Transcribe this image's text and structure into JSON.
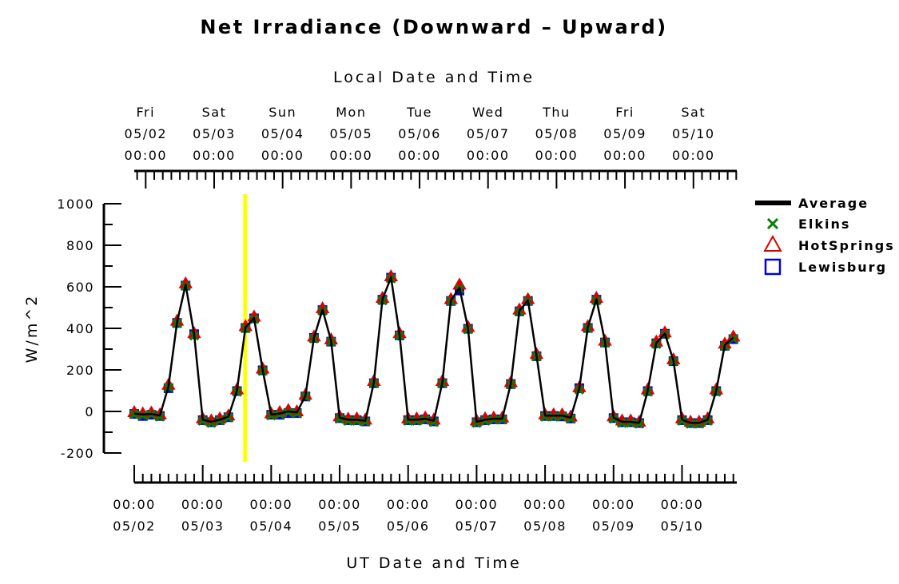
{
  "chart_data": {
    "type": "line",
    "title": "Net Irradiance (Downward – Upward)",
    "top_axis_title": "Local Date and Time",
    "xlabel": "UT Date and Time",
    "ylabel": "W/m^2",
    "ylim": [
      -200,
      1000
    ],
    "yticks": [
      -200,
      0,
      200,
      400,
      600,
      800,
      1000
    ],
    "xlim_days": [
      0,
      8.8
    ],
    "top_ticks": [
      {
        "day": "Fri",
        "date": "05/02",
        "time": "00:00"
      },
      {
        "day": "Sat",
        "date": "05/03",
        "time": "00:00"
      },
      {
        "day": "Sun",
        "date": "05/04",
        "time": "00:00"
      },
      {
        "day": "Mon",
        "date": "05/05",
        "time": "00:00"
      },
      {
        "day": "Tue",
        "date": "05/06",
        "time": "00:00"
      },
      {
        "day": "Wed",
        "date": "05/07",
        "time": "00:00"
      },
      {
        "day": "Thu",
        "date": "05/08",
        "time": "00:00"
      },
      {
        "day": "Fri",
        "date": "05/09",
        "time": "00:00"
      },
      {
        "day": "Sat",
        "date": "05/10",
        "time": "00:00"
      }
    ],
    "top_tick_offset_days": 0.167,
    "bottom_ticks": [
      {
        "time": "00:00",
        "date": "05/02"
      },
      {
        "time": "00:00",
        "date": "05/03"
      },
      {
        "time": "00:00",
        "date": "05/04"
      },
      {
        "time": "00:00",
        "date": "05/05"
      },
      {
        "time": "00:00",
        "date": "05/06"
      },
      {
        "time": "00:00",
        "date": "05/07"
      },
      {
        "time": "00:00",
        "date": "05/08"
      },
      {
        "time": "00:00",
        "date": "05/09"
      },
      {
        "time": "00:00",
        "date": "05/10"
      }
    ],
    "current_time_day": 1.62,
    "x_days": [
      0,
      0.125,
      0.25,
      0.375,
      0.5,
      0.625,
      0.75,
      0.875,
      1,
      1.125,
      1.25,
      1.375,
      1.5,
      1.625,
      1.75,
      1.875,
      2,
      2.125,
      2.25,
      2.375,
      2.5,
      2.625,
      2.75,
      2.875,
      3,
      3.125,
      3.25,
      3.375,
      3.5,
      3.625,
      3.75,
      3.875,
      4,
      4.125,
      4.25,
      4.375,
      4.5,
      4.625,
      4.75,
      4.875,
      5,
      5.125,
      5.25,
      5.375,
      5.5,
      5.625,
      5.75,
      5.875,
      6,
      6.125,
      6.25,
      6.375,
      6.5,
      6.625,
      6.75,
      6.875,
      7,
      7.125,
      7.25,
      7.375,
      7.5,
      7.625,
      7.75,
      7.875,
      8,
      8.125,
      8.25,
      8.375,
      8.5,
      8.625,
      8.75
    ],
    "series": [
      {
        "name": "Average",
        "color": "#000000",
        "marker": "line",
        "values": [
          -10,
          -15,
          -12,
          -20,
          120,
          430,
          610,
          370,
          -40,
          -50,
          -40,
          -25,
          100,
          405,
          450,
          200,
          -15,
          -10,
          0,
          -5,
          75,
          355,
          490,
          340,
          -30,
          -40,
          -40,
          -45,
          140,
          540,
          645,
          370,
          -40,
          -40,
          -35,
          -45,
          140,
          535,
          595,
          400,
          -50,
          -40,
          -35,
          -35,
          135,
          485,
          535,
          270,
          -20,
          -20,
          -20,
          -30,
          110,
          405,
          540,
          335,
          -30,
          -50,
          -50,
          -55,
          100,
          330,
          375,
          245,
          -40,
          -55,
          -55,
          -40,
          100,
          320,
          355
        ]
      },
      {
        "name": "Elkins",
        "color": "#008000",
        "marker": "x",
        "values": [
          -14,
          -20,
          -15,
          -26,
          115,
          424,
          604,
          364,
          -46,
          -56,
          -44,
          -30,
          94,
          400,
          444,
          194,
          -20,
          -14,
          -5,
          -10,
          70,
          350,
          484,
          335,
          -36,
          -46,
          -46,
          -50,
          135,
          534,
          640,
          364,
          -46,
          -46,
          -40,
          -52,
          134,
          530,
          590,
          395,
          -56,
          -46,
          -40,
          -40,
          130,
          480,
          530,
          264,
          -26,
          -26,
          -25,
          -36,
          104,
          400,
          534,
          330,
          -36,
          -56,
          -56,
          -60,
          94,
          324,
          370,
          240,
          -46,
          -60,
          -60,
          -46,
          94,
          314,
          350
        ]
      },
      {
        "name": "HotSprings",
        "color": "#dd0000",
        "marker": "triangle",
        "values": [
          -4,
          -10,
          -6,
          -15,
          128,
          436,
          616,
          376,
          -34,
          -44,
          -34,
          -20,
          106,
          410,
          456,
          206,
          -10,
          -4,
          6,
          0,
          80,
          360,
          496,
          346,
          -24,
          -35,
          -34,
          -40,
          146,
          546,
          650,
          376,
          -34,
          -34,
          -30,
          -40,
          146,
          540,
          610,
          406,
          -44,
          -34,
          -30,
          -30,
          140,
          490,
          540,
          276,
          -15,
          -15,
          -15,
          -25,
          116,
          410,
          546,
          340,
          -24,
          -44,
          -44,
          -50,
          106,
          336,
          380,
          250,
          -34,
          -50,
          -50,
          -34,
          106,
          326,
          360
        ]
      },
      {
        "name": "Lewisburg",
        "color": "#0000dd",
        "marker": "square",
        "values": [
          -12,
          -22,
          -16,
          -22,
          112,
          426,
          606,
          372,
          -42,
          -52,
          -42,
          -28,
          98,
          402,
          448,
          198,
          -16,
          -16,
          -8,
          -8,
          72,
          354,
          488,
          336,
          -32,
          -42,
          -42,
          -48,
          136,
          538,
          644,
          366,
          -42,
          -42,
          -38,
          -48,
          136,
          532,
          582,
          398,
          -52,
          -42,
          -38,
          -38,
          132,
          482,
          532,
          266,
          -22,
          -22,
          -24,
          -34,
          112,
          402,
          538,
          332,
          -32,
          -52,
          -52,
          -56,
          98,
          328,
          374,
          242,
          -42,
          -56,
          -56,
          -42,
          98,
          316,
          348
        ]
      }
    ],
    "legend_placement": "right"
  }
}
